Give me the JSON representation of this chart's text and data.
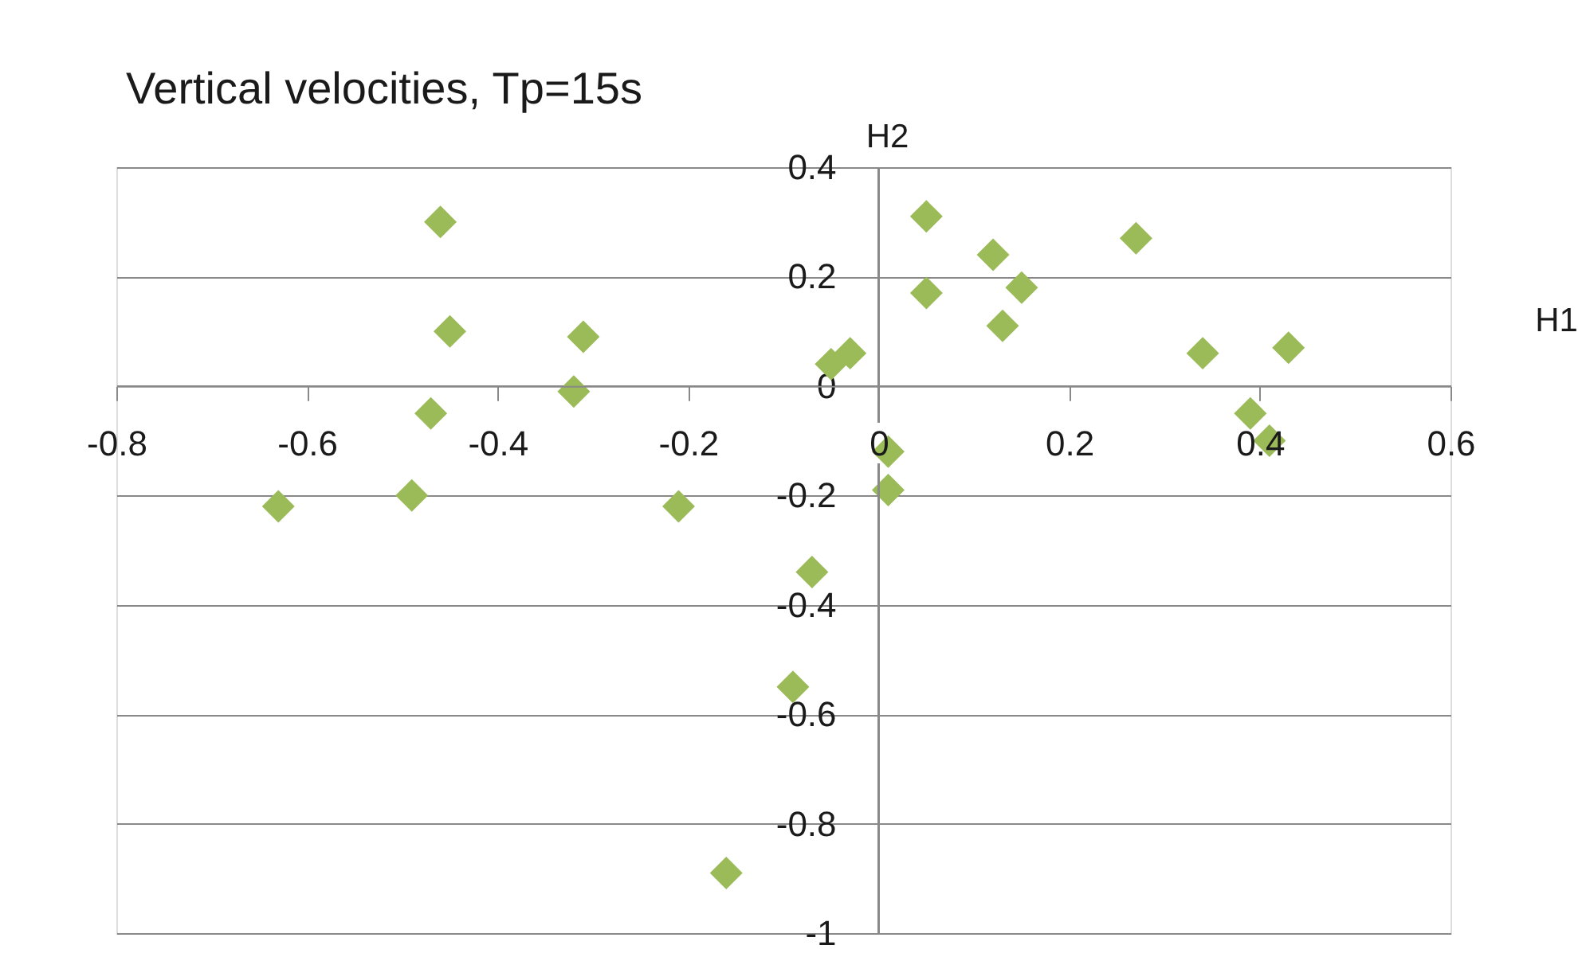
{
  "chart_data": {
    "type": "scatter",
    "title": "Vertical velocities, Tp=15s",
    "xlabel": "H1",
    "ylabel": "H2",
    "x": [
      -0.63,
      -0.49,
      -0.47,
      -0.46,
      -0.45,
      -0.32,
      -0.31,
      -0.21,
      -0.16,
      -0.09,
      -0.07,
      -0.05,
      -0.03,
      0.01,
      0.01,
      0.05,
      0.05,
      0.12,
      0.13,
      0.15,
      0.27,
      0.34,
      0.39,
      0.41,
      0.43
    ],
    "series": [
      {
        "color": "#9bbb59",
        "values": [
          -0.22,
          -0.2,
          -0.05,
          0.3,
          0.1,
          -0.01,
          0.09,
          -0.22,
          -0.89,
          -0.55,
          -0.34,
          0.04,
          0.06,
          -0.12,
          -0.19,
          0.31,
          0.17,
          0.24,
          0.11,
          0.18,
          0.27,
          0.06,
          -0.05,
          -0.1,
          0.07
        ]
      }
    ],
    "xlim": [
      -0.8,
      0.6
    ],
    "ylim": [
      -1,
      0.4
    ],
    "xticks": [
      -0.8,
      -0.6,
      -0.4,
      -0.2,
      0,
      0.2,
      0.4,
      0.6
    ],
    "yticks": [
      -1,
      -0.8,
      -0.6,
      -0.4,
      -0.2,
      0,
      0.2,
      0.4
    ],
    "grid": "y",
    "legend": false,
    "marker": "diamond"
  }
}
